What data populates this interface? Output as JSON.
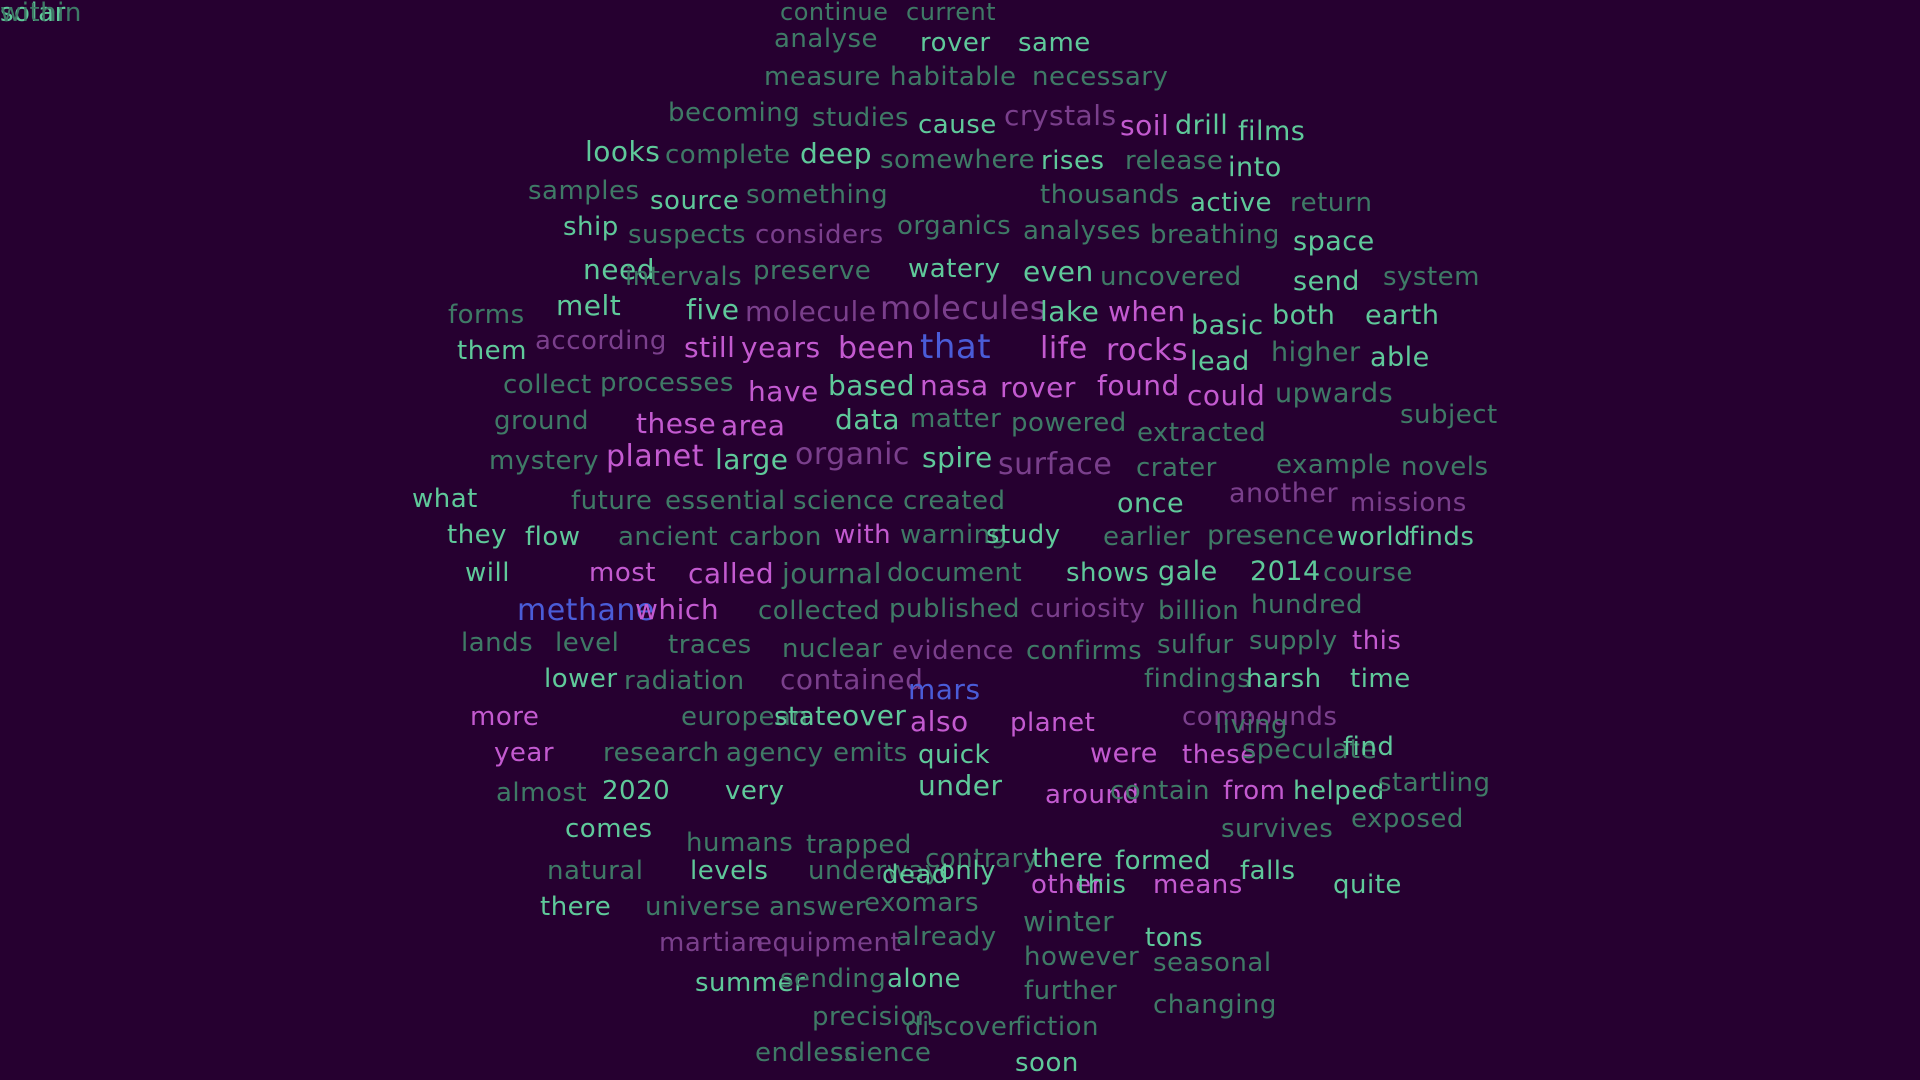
{
  "background": "#260030",
  "palette": {
    "g": "#5fc99a",
    "d": "#3f7a66",
    "p": "#c35ad0",
    "m": "#7a3f8c",
    "b": "#4a5cd8"
  },
  "words": [
    {
      "t": "continue",
      "c": "d"
    },
    {
      "t": "current",
      "c": "d"
    },
    {
      "t": "analyse",
      "c": "d"
    },
    {
      "t": "rover",
      "c": "g"
    },
    {
      "t": "same",
      "c": "g"
    },
    {
      "t": "measure",
      "c": "d"
    },
    {
      "t": "habitable",
      "c": "d"
    },
    {
      "t": "necessary",
      "c": "d"
    },
    {
      "t": "becoming",
      "c": "d"
    },
    {
      "t": "studies",
      "c": "d"
    },
    {
      "t": "cause",
      "c": "g"
    },
    {
      "t": "crystals",
      "c": "m"
    },
    {
      "t": "soil",
      "c": "p"
    },
    {
      "t": "drill",
      "c": "g"
    },
    {
      "t": "films",
      "c": "g"
    },
    {
      "t": "looks",
      "c": "g"
    },
    {
      "t": "complete",
      "c": "d"
    },
    {
      "t": "deep",
      "c": "g"
    },
    {
      "t": "somewhere",
      "c": "d"
    },
    {
      "t": "rises",
      "c": "g"
    },
    {
      "t": "release",
      "c": "d"
    },
    {
      "t": "into",
      "c": "g"
    },
    {
      "t": "samples",
      "c": "d"
    },
    {
      "t": "source",
      "c": "g"
    },
    {
      "t": "something",
      "c": "d"
    },
    {
      "t": "thousands",
      "c": "d"
    },
    {
      "t": "active",
      "c": "g"
    },
    {
      "t": "return",
      "c": "d"
    },
    {
      "t": "ship",
      "c": "g"
    },
    {
      "t": "suspects",
      "c": "d"
    },
    {
      "t": "considers",
      "c": "m"
    },
    {
      "t": "organics",
      "c": "d"
    },
    {
      "t": "analyses",
      "c": "d"
    },
    {
      "t": "breathing",
      "c": "d"
    },
    {
      "t": "space",
      "c": "g"
    },
    {
      "t": "need",
      "c": "g"
    },
    {
      "t": "intervals",
      "c": "d"
    },
    {
      "t": "preserve",
      "c": "d"
    },
    {
      "t": "watery",
      "c": "g"
    },
    {
      "t": "even",
      "c": "g"
    },
    {
      "t": "uncovered",
      "c": "d"
    },
    {
      "t": "send",
      "c": "g"
    },
    {
      "t": "system",
      "c": "d"
    },
    {
      "t": "forms",
      "c": "d"
    },
    {
      "t": "melt",
      "c": "g"
    },
    {
      "t": "five",
      "c": "g"
    },
    {
      "t": "molecule",
      "c": "m"
    },
    {
      "t": "molecules",
      "c": "m"
    },
    {
      "t": "lake",
      "c": "g"
    },
    {
      "t": "when",
      "c": "p"
    },
    {
      "t": "basic",
      "c": "g"
    },
    {
      "t": "both",
      "c": "g"
    },
    {
      "t": "earth",
      "c": "g"
    },
    {
      "t": "them",
      "c": "g"
    },
    {
      "t": "according",
      "c": "m"
    },
    {
      "t": "still",
      "c": "p"
    },
    {
      "t": "years",
      "c": "p"
    },
    {
      "t": "been",
      "c": "p"
    },
    {
      "t": "that",
      "c": "b"
    },
    {
      "t": "life",
      "c": "p"
    },
    {
      "t": "rocks",
      "c": "p"
    },
    {
      "t": "lead",
      "c": "g"
    },
    {
      "t": "higher",
      "c": "d"
    },
    {
      "t": "able",
      "c": "g"
    },
    {
      "t": "collect",
      "c": "d"
    },
    {
      "t": "processes",
      "c": "d"
    },
    {
      "t": "have",
      "c": "p"
    },
    {
      "t": "based",
      "c": "g"
    },
    {
      "t": "nasa",
      "c": "p"
    },
    {
      "t": "rover",
      "c": "p"
    },
    {
      "t": "found",
      "c": "p"
    },
    {
      "t": "could",
      "c": "p"
    },
    {
      "t": "upwards",
      "c": "d"
    },
    {
      "t": "subject",
      "c": "d"
    },
    {
      "t": "ground",
      "c": "d"
    },
    {
      "t": "these",
      "c": "p"
    },
    {
      "t": "area",
      "c": "p"
    },
    {
      "t": "data",
      "c": "g"
    },
    {
      "t": "matter",
      "c": "d"
    },
    {
      "t": "powered",
      "c": "d"
    },
    {
      "t": "extracted",
      "c": "d"
    },
    {
      "t": "mystery",
      "c": "d"
    },
    {
      "t": "planet",
      "c": "p"
    },
    {
      "t": "large",
      "c": "g"
    },
    {
      "t": "organic",
      "c": "m"
    },
    {
      "t": "spire",
      "c": "g"
    },
    {
      "t": "surface",
      "c": "m"
    },
    {
      "t": "crater",
      "c": "d"
    },
    {
      "t": "example",
      "c": "d"
    },
    {
      "t": "novels",
      "c": "d"
    },
    {
      "t": "what",
      "c": "g"
    },
    {
      "t": "future",
      "c": "d"
    },
    {
      "t": "essential",
      "c": "d"
    },
    {
      "t": "science",
      "c": "d"
    },
    {
      "t": "created",
      "c": "d"
    },
    {
      "t": "once",
      "c": "g"
    },
    {
      "t": "another",
      "c": "m"
    },
    {
      "t": "missions",
      "c": "m"
    },
    {
      "t": "they",
      "c": "g"
    },
    {
      "t": "flow",
      "c": "g"
    },
    {
      "t": "ancient",
      "c": "d"
    },
    {
      "t": "carbon",
      "c": "d"
    },
    {
      "t": "with",
      "c": "p"
    },
    {
      "t": "warning",
      "c": "d"
    },
    {
      "t": "study",
      "c": "g"
    },
    {
      "t": "earlier",
      "c": "d"
    },
    {
      "t": "presence",
      "c": "d"
    },
    {
      "t": "world",
      "c": "g"
    },
    {
      "t": "finds",
      "c": "g"
    },
    {
      "t": "will",
      "c": "g"
    },
    {
      "t": "most",
      "c": "p"
    },
    {
      "t": "called",
      "c": "p"
    },
    {
      "t": "journal",
      "c": "d"
    },
    {
      "t": "document",
      "c": "d"
    },
    {
      "t": "shows",
      "c": "g"
    },
    {
      "t": "gale",
      "c": "g"
    },
    {
      "t": "2014",
      "c": "g"
    },
    {
      "t": "course",
      "c": "d"
    },
    {
      "t": "methane",
      "c": "b"
    },
    {
      "t": "which",
      "c": "p"
    },
    {
      "t": "collected",
      "c": "d"
    },
    {
      "t": "published",
      "c": "d"
    },
    {
      "t": "curiosity",
      "c": "m"
    },
    {
      "t": "billion",
      "c": "d"
    },
    {
      "t": "hundred",
      "c": "d"
    },
    {
      "t": "lands",
      "c": "d"
    },
    {
      "t": "level",
      "c": "d"
    },
    {
      "t": "traces",
      "c": "d"
    },
    {
      "t": "nuclear",
      "c": "d"
    },
    {
      "t": "evidence",
      "c": "m"
    },
    {
      "t": "confirms",
      "c": "d"
    },
    {
      "t": "sulfur",
      "c": "d"
    },
    {
      "t": "supply",
      "c": "d"
    },
    {
      "t": "this",
      "c": "p"
    },
    {
      "t": "lower",
      "c": "g"
    },
    {
      "t": "radiation",
      "c": "d"
    },
    {
      "t": "contained",
      "c": "m"
    },
    {
      "t": "mars",
      "c": "b"
    },
    {
      "t": "findings",
      "c": "d"
    },
    {
      "t": "harsh",
      "c": "g"
    },
    {
      "t": "time",
      "c": "g"
    },
    {
      "t": "more",
      "c": "p"
    },
    {
      "t": "european",
      "c": "d"
    },
    {
      "t": "state",
      "c": "g"
    },
    {
      "t": "over",
      "c": "g"
    },
    {
      "t": "also",
      "c": "p"
    },
    {
      "t": "planet",
      "c": "p"
    },
    {
      "t": "compounds",
      "c": "m"
    },
    {
      "t": "living",
      "c": "d"
    },
    {
      "t": "year",
      "c": "p"
    },
    {
      "t": "research",
      "c": "d"
    },
    {
      "t": "agency",
      "c": "d"
    },
    {
      "t": "emits",
      "c": "d"
    },
    {
      "t": "quick",
      "c": "g"
    },
    {
      "t": "were",
      "c": "p"
    },
    {
      "t": "these",
      "c": "p"
    },
    {
      "t": "speculate",
      "c": "d"
    },
    {
      "t": "find",
      "c": "g"
    },
    {
      "t": "almost",
      "c": "d"
    },
    {
      "t": "2020",
      "c": "g"
    },
    {
      "t": "very",
      "c": "g"
    },
    {
      "t": "under",
      "c": "g"
    },
    {
      "t": "around",
      "c": "p"
    },
    {
      "t": "contain",
      "c": "d"
    },
    {
      "t": "from",
      "c": "p"
    },
    {
      "t": "helped",
      "c": "g"
    },
    {
      "t": "startling",
      "c": "d"
    },
    {
      "t": "comes",
      "c": "g"
    },
    {
      "t": "humans",
      "c": "d"
    },
    {
      "t": "trapped",
      "c": "d"
    },
    {
      "t": "survives",
      "c": "d"
    },
    {
      "t": "exposed",
      "c": "d"
    },
    {
      "t": "contrary",
      "c": "d"
    },
    {
      "t": "there",
      "c": "g"
    },
    {
      "t": "formed",
      "c": "g"
    },
    {
      "t": "natural",
      "c": "d"
    },
    {
      "t": "levels",
      "c": "g"
    },
    {
      "t": "underway",
      "c": "d"
    },
    {
      "t": "dead",
      "c": "g"
    },
    {
      "t": "only",
      "c": "g"
    },
    {
      "t": "other",
      "c": "p"
    },
    {
      "t": "this",
      "c": "g"
    },
    {
      "t": "means",
      "c": "p"
    },
    {
      "t": "falls",
      "c": "g"
    },
    {
      "t": "quite",
      "c": "g"
    },
    {
      "t": "there",
      "c": "g"
    },
    {
      "t": "universe",
      "c": "d"
    },
    {
      "t": "answer",
      "c": "d"
    },
    {
      "t": "exomars",
      "c": "d"
    },
    {
      "t": "winter",
      "c": "d"
    },
    {
      "t": "tons",
      "c": "g"
    },
    {
      "t": "martian",
      "c": "m"
    },
    {
      "t": "equipment",
      "c": "m"
    },
    {
      "t": "already",
      "c": "d"
    },
    {
      "t": "however",
      "c": "d"
    },
    {
      "t": "seasonal",
      "c": "d"
    },
    {
      "t": "summer",
      "c": "g"
    },
    {
      "t": "sending",
      "c": "d"
    },
    {
      "t": "alone",
      "c": "g"
    },
    {
      "t": "further",
      "c": "d"
    },
    {
      "t": "changing",
      "c": "d"
    },
    {
      "t": "precision",
      "c": "d"
    },
    {
      "t": "discover",
      "c": "d"
    },
    {
      "t": "fiction",
      "c": "d"
    },
    {
      "t": "endless",
      "c": "d"
    },
    {
      "t": "science",
      "c": "d"
    },
    {
      "t": "soon",
      "c": "g"
    },
    {
      "t": "solar",
      "c": "g"
    },
    {
      "t": "within",
      "c": "d"
    }
  ]
}
